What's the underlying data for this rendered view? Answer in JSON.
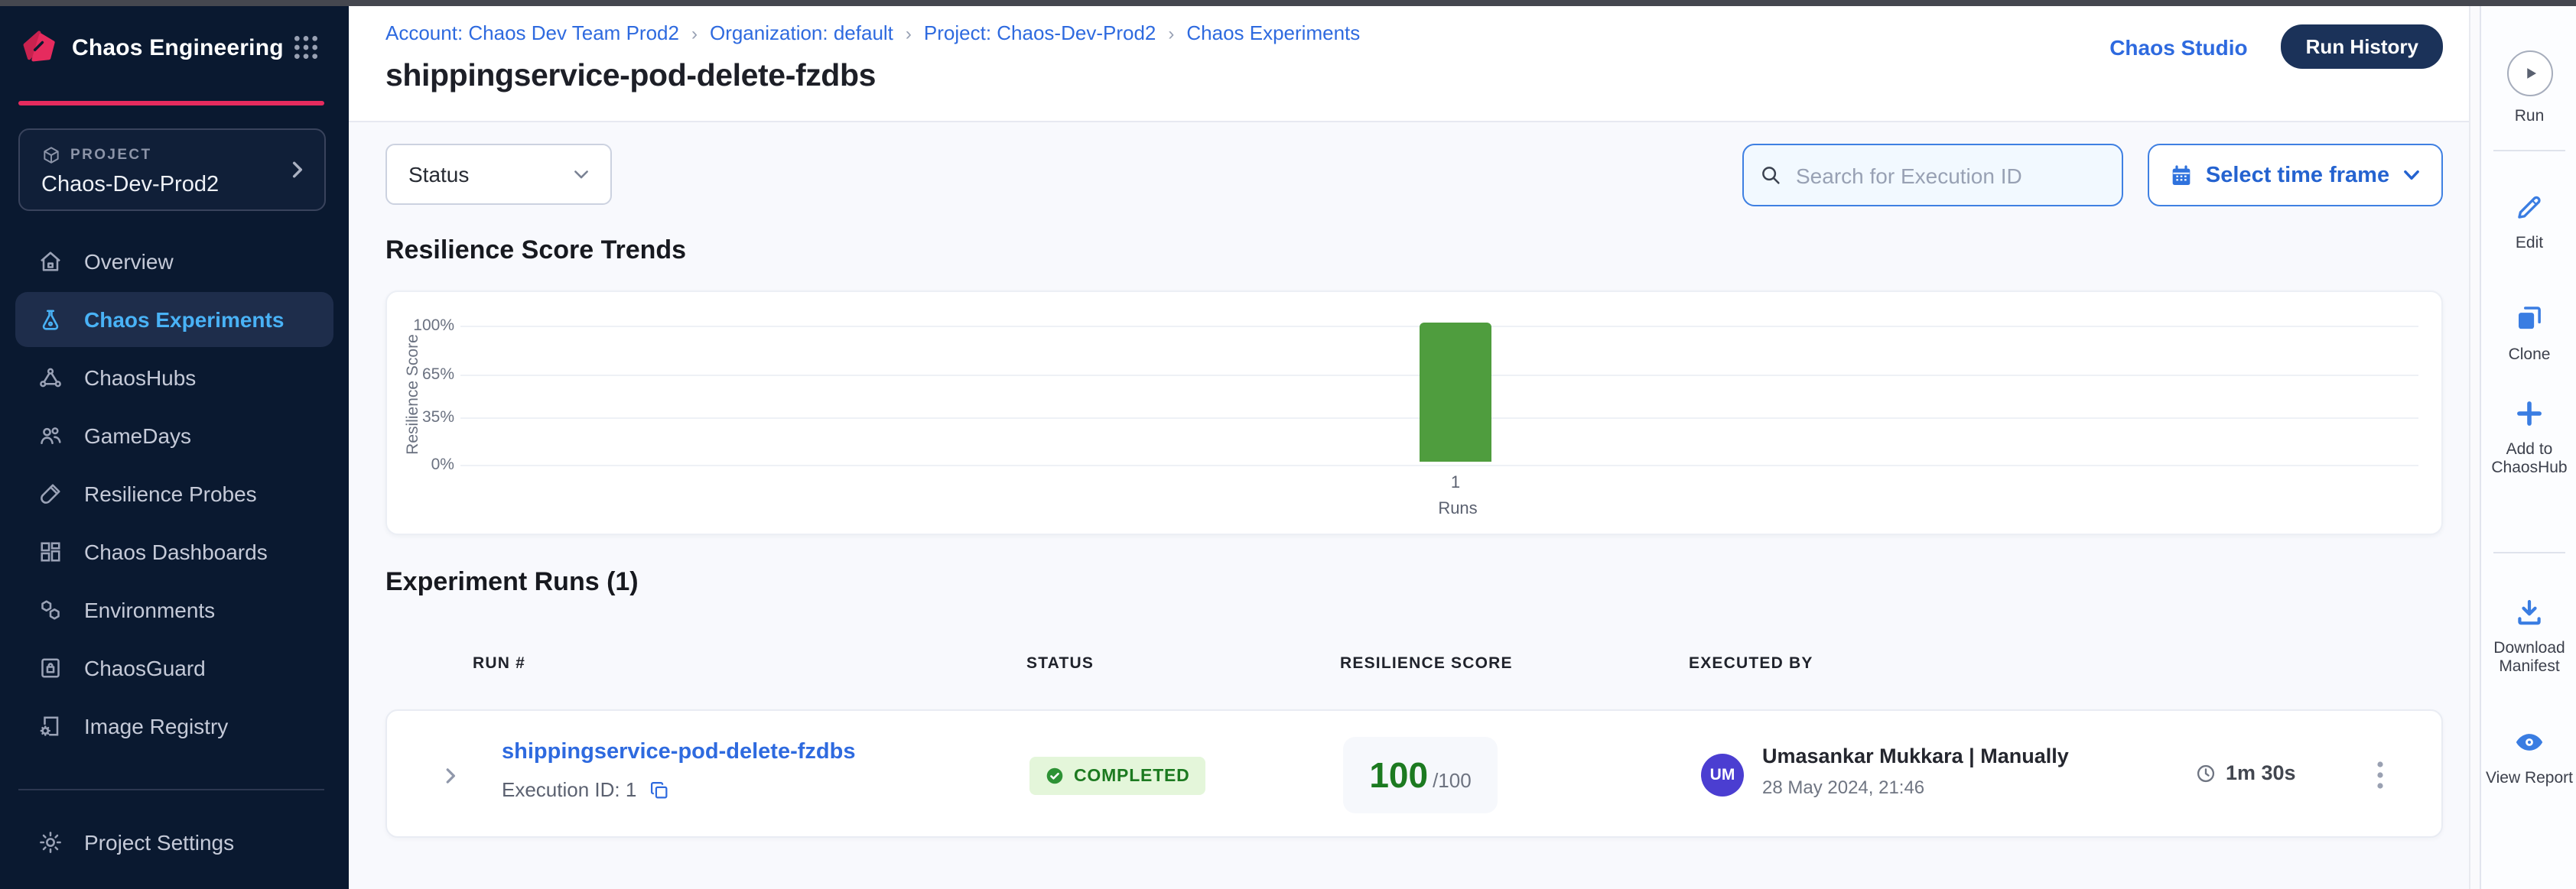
{
  "sidebar": {
    "product_name": "Chaos Engineering",
    "project": {
      "label": "PROJECT",
      "name": "Chaos-Dev-Prod2"
    },
    "items": [
      {
        "label": "Overview",
        "active": false
      },
      {
        "label": "Chaos Experiments",
        "active": true
      },
      {
        "label": "ChaosHubs",
        "active": false
      },
      {
        "label": "GameDays",
        "active": false
      },
      {
        "label": "Resilience Probes",
        "active": false
      },
      {
        "label": "Chaos Dashboards",
        "active": false
      },
      {
        "label": "Environments",
        "active": false
      },
      {
        "label": "ChaosGuard",
        "active": false
      },
      {
        "label": "Image Registry",
        "active": false
      }
    ],
    "footer_item": {
      "label": "Project Settings"
    }
  },
  "header": {
    "breadcrumb": [
      "Account: Chaos Dev Team Prod2",
      "Organization: default",
      "Project: Chaos-Dev-Prod2",
      "Chaos Experiments"
    ],
    "title": "shippingservice-pod-delete-fzdbs",
    "chaos_studio_label": "Chaos Studio",
    "run_history_label": "Run History"
  },
  "filters": {
    "status_label": "Status",
    "search_placeholder": "Search for Execution ID",
    "time_frame_label": "Select time frame"
  },
  "chart_section_title": "Resilience Score Trends",
  "chart_data": {
    "type": "bar",
    "title": "Resilience Score Trends",
    "categories": [
      "1"
    ],
    "values": [
      100
    ],
    "xlabel": "Runs",
    "ylabel": "Resilience Score",
    "yticks": [
      "100%",
      "65%",
      "35%",
      "0%"
    ],
    "ylim": [
      0,
      100
    ],
    "grid": true,
    "legend": false,
    "bar_color": "#4f9d3e"
  },
  "runs": {
    "title": "Experiment Runs (1)",
    "columns": [
      "RUN #",
      "STATUS",
      "RESILIENCE SCORE",
      "EXECUTED BY"
    ],
    "rows": [
      {
        "name": "shippingservice-pod-delete-fzdbs",
        "execution_id": "Execution ID: 1",
        "status": "COMPLETED",
        "score": "100",
        "score_denominator": "/100",
        "executed_by": "Umasankar Mukkara | Manually",
        "executed_at": "28 May 2024, 21:46",
        "duration": "1m 30s",
        "avatar_initials": "UM"
      }
    ]
  },
  "action_rail": {
    "items": [
      {
        "label": "Run"
      },
      {
        "label": "Edit"
      },
      {
        "label": "Clone"
      },
      {
        "label": "Add to ChaosHub"
      },
      {
        "label": "Download Manifest"
      },
      {
        "label": "View Report"
      }
    ]
  },
  "colors": {
    "accent_blue": "#2e6adf",
    "active_nav_blue": "#49b2f6",
    "brand_pink": "#e62b5e",
    "bar_green": "#4f9d3e",
    "status_green_text": "#1c7a20",
    "status_green_bg": "#e4f6da",
    "sidebar_navy": "#0a1930",
    "run_history_navy": "#1b3259",
    "avatar_indigo": "#4b3ed1"
  }
}
